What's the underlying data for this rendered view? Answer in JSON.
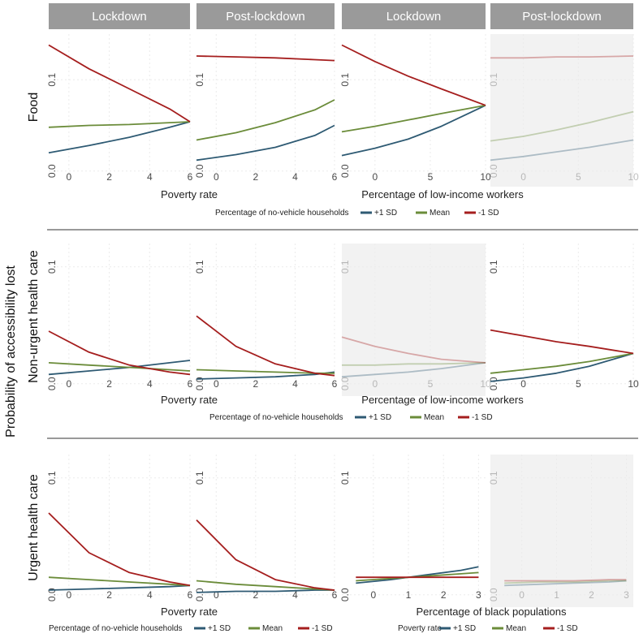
{
  "chart_data": {
    "type": "line",
    "ylabel": "Probability of accessibility lost",
    "strip_labels": [
      "Lockdown",
      "Post-lockdown",
      "Lockdown",
      "Post-lockdown"
    ],
    "colors": {
      "plus": "#2e5a73",
      "mean": "#6b8c3a",
      "minus": "#a51e1e",
      "strip": "#9a9a9a",
      "separator": "#999999",
      "faded_bg": "#f2f2f2",
      "grid": "#ebebeb"
    },
    "y_ticks": [
      {
        "value": 0,
        "label": "0.0"
      },
      {
        "value": 0.1,
        "label": "0.1"
      }
    ],
    "rows": [
      {
        "label": "Food",
        "ylim": [
          -0.01,
          0.15
        ],
        "groups": [
          {
            "xlabel": "Poverty rate",
            "legend": {
              "title": "Percentage of no-vehicle households",
              "entries": [
                "+1 SD",
                "Mean",
                "-1 SD"
              ]
            }
          },
          {
            "xlabel": "Percentage of low-income workers",
            "legend": null
          }
        ],
        "panels": [
          {
            "xlim": [
              -1,
              6
            ],
            "x_ticks": [
              0,
              2,
              4,
              6
            ],
            "faded": false,
            "series": [
              {
                "name": "+1 SD",
                "x": [
                  -1,
                  1,
                  3,
                  5,
                  6
                ],
                "y": [
                  0.02,
                  0.028,
                  0.037,
                  0.048,
                  0.054
                ]
              },
              {
                "name": "Mean",
                "x": [
                  -1,
                  1,
                  3,
                  5,
                  6
                ],
                "y": [
                  0.048,
                  0.05,
                  0.051,
                  0.053,
                  0.054
                ]
              },
              {
                "name": "-1 SD",
                "x": [
                  -1,
                  1,
                  3,
                  5,
                  6
                ],
                "y": [
                  0.138,
                  0.112,
                  0.09,
                  0.068,
                  0.054
                ]
              }
            ]
          },
          {
            "xlim": [
              -1,
              6
            ],
            "x_ticks": [
              0,
              2,
              4,
              6
            ],
            "faded": false,
            "series": [
              {
                "name": "+1 SD",
                "x": [
                  -1,
                  1,
                  3,
                  5,
                  6
                ],
                "y": [
                  0.012,
                  0.018,
                  0.026,
                  0.039,
                  0.05
                ]
              },
              {
                "name": "Mean",
                "x": [
                  -1,
                  1,
                  3,
                  5,
                  6
                ],
                "y": [
                  0.034,
                  0.042,
                  0.053,
                  0.067,
                  0.078
                ]
              },
              {
                "name": "-1 SD",
                "x": [
                  -1,
                  1,
                  3,
                  5,
                  6
                ],
                "y": [
                  0.126,
                  0.125,
                  0.124,
                  0.122,
                  0.121
                ]
              }
            ]
          },
          {
            "xlim": [
              -3,
              10
            ],
            "x_ticks": [
              0,
              5,
              10
            ],
            "faded": false,
            "series": [
              {
                "name": "+1 SD",
                "x": [
                  -3,
                  0,
                  3,
                  6,
                  10
                ],
                "y": [
                  0.017,
                  0.025,
                  0.035,
                  0.049,
                  0.072
                ]
              },
              {
                "name": "Mean",
                "x": [
                  -3,
                  0,
                  3,
                  6,
                  10
                ],
                "y": [
                  0.043,
                  0.049,
                  0.056,
                  0.063,
                  0.072
                ]
              },
              {
                "name": "-1 SD",
                "x": [
                  -3,
                  0,
                  3,
                  6,
                  10
                ],
                "y": [
                  0.138,
                  0.12,
                  0.104,
                  0.09,
                  0.072
                ]
              }
            ]
          },
          {
            "xlim": [
              -3,
              10
            ],
            "x_ticks": [
              0,
              5,
              10
            ],
            "faded": true,
            "series": [
              {
                "name": "+1 SD",
                "x": [
                  -3,
                  0,
                  3,
                  6,
                  10
                ],
                "y": [
                  0.012,
                  0.016,
                  0.021,
                  0.026,
                  0.034
                ]
              },
              {
                "name": "Mean",
                "x": [
                  -3,
                  0,
                  3,
                  6,
                  10
                ],
                "y": [
                  0.033,
                  0.038,
                  0.045,
                  0.053,
                  0.065
                ]
              },
              {
                "name": "-1 SD",
                "x": [
                  -3,
                  0,
                  3,
                  6,
                  10
                ],
                "y": [
                  0.124,
                  0.124,
                  0.125,
                  0.125,
                  0.126
                ]
              }
            ]
          }
        ]
      },
      {
        "label": "Non-urgent health care",
        "ylim": [
          -0.005,
          0.12
        ],
        "groups": [
          {
            "xlabel": "Poverty rate",
            "legend": {
              "title": "Percentage of no-vehicle households",
              "entries": [
                "+1 SD",
                "Mean",
                "-1 SD"
              ]
            }
          },
          {
            "xlabel": "Percentage of low-income workers",
            "legend": null
          }
        ],
        "panels": [
          {
            "xlim": [
              -1,
              6
            ],
            "x_ticks": [
              0,
              2,
              4,
              6
            ],
            "faded": false,
            "series": [
              {
                "name": "+1 SD",
                "x": [
                  -1,
                  1,
                  3,
                  5,
                  6
                ],
                "y": [
                  0.008,
                  0.011,
                  0.014,
                  0.018,
                  0.02
                ]
              },
              {
                "name": "Mean",
                "x": [
                  -1,
                  1,
                  3,
                  5,
                  6
                ],
                "y": [
                  0.018,
                  0.016,
                  0.014,
                  0.012,
                  0.011
                ]
              },
              {
                "name": "-1 SD",
                "x": [
                  -1,
                  1,
                  3,
                  5,
                  6
                ],
                "y": [
                  0.045,
                  0.027,
                  0.016,
                  0.01,
                  0.008
                ]
              }
            ]
          },
          {
            "xlim": [
              -1,
              6
            ],
            "x_ticks": [
              0,
              2,
              4,
              6
            ],
            "faded": false,
            "series": [
              {
                "name": "+1 SD",
                "x": [
                  -1,
                  1,
                  3,
                  5,
                  6
                ],
                "y": [
                  0.004,
                  0.005,
                  0.006,
                  0.008,
                  0.01
                ]
              },
              {
                "name": "Mean",
                "x": [
                  -1,
                  1,
                  3,
                  5,
                  6
                ],
                "y": [
                  0.012,
                  0.011,
                  0.01,
                  0.009,
                  0.009
                ]
              },
              {
                "name": "-1 SD",
                "x": [
                  -1,
                  1,
                  3,
                  5,
                  6
                ],
                "y": [
                  0.058,
                  0.032,
                  0.017,
                  0.009,
                  0.007
                ]
              }
            ]
          },
          {
            "xlim": [
              -3,
              10
            ],
            "x_ticks": [
              0,
              5,
              10
            ],
            "faded": true,
            "series": [
              {
                "name": "+1 SD",
                "x": [
                  -3,
                  0,
                  3,
                  6,
                  10
                ],
                "y": [
                  0.006,
                  0.008,
                  0.01,
                  0.013,
                  0.018
                ]
              },
              {
                "name": "Mean",
                "x": [
                  -3,
                  0,
                  3,
                  6,
                  10
                ],
                "y": [
                  0.016,
                  0.016,
                  0.017,
                  0.017,
                  0.018
                ]
              },
              {
                "name": "-1 SD",
                "x": [
                  -3,
                  0,
                  3,
                  6,
                  10
                ],
                "y": [
                  0.04,
                  0.032,
                  0.026,
                  0.021,
                  0.018
                ]
              }
            ]
          },
          {
            "xlim": [
              -3,
              10
            ],
            "x_ticks": [
              0,
              5,
              10
            ],
            "faded": false,
            "series": [
              {
                "name": "+1 SD",
                "x": [
                  -3,
                  0,
                  3,
                  6,
                  10
                ],
                "y": [
                  0.002,
                  0.005,
                  0.009,
                  0.015,
                  0.026
                ]
              },
              {
                "name": "Mean",
                "x": [
                  -3,
                  0,
                  3,
                  6,
                  10
                ],
                "y": [
                  0.009,
                  0.012,
                  0.015,
                  0.019,
                  0.026
                ]
              },
              {
                "name": "-1 SD",
                "x": [
                  -3,
                  0,
                  3,
                  6,
                  10
                ],
                "y": [
                  0.046,
                  0.041,
                  0.036,
                  0.032,
                  0.026
                ]
              }
            ]
          }
        ]
      },
      {
        "label": "Urgent health care",
        "ylim": [
          -0.005,
          0.12
        ],
        "groups": [
          {
            "xlabel": "Poverty rate",
            "legend": {
              "title": "Percentage of no-vehicle households",
              "entries": [
                "+1 SD",
                "Mean",
                "-1 SD"
              ]
            }
          },
          {
            "xlabel": "Percentage of black populations",
            "legend": {
              "title": "Poverty rate",
              "entries": [
                "+1 SD",
                "Mean",
                "-1 SD"
              ]
            }
          }
        ],
        "panels": [
          {
            "xlim": [
              -1,
              6
            ],
            "x_ticks": [
              0,
              2,
              4,
              6
            ],
            "faded": false,
            "series": [
              {
                "name": "+1 SD",
                "x": [
                  -1,
                  1,
                  3,
                  5,
                  6
                ],
                "y": [
                  0.004,
                  0.005,
                  0.006,
                  0.007,
                  0.008
                ]
              },
              {
                "name": "Mean",
                "x": [
                  -1,
                  1,
                  3,
                  5,
                  6
                ],
                "y": [
                  0.015,
                  0.013,
                  0.011,
                  0.009,
                  0.008
                ]
              },
              {
                "name": "-1 SD",
                "x": [
                  -1,
                  1,
                  3,
                  5,
                  6
                ],
                "y": [
                  0.07,
                  0.036,
                  0.019,
                  0.011,
                  0.008
                ]
              }
            ]
          },
          {
            "xlim": [
              -1,
              6
            ],
            "x_ticks": [
              0,
              2,
              4,
              6
            ],
            "faded": false,
            "series": [
              {
                "name": "+1 SD",
                "x": [
                  -1,
                  1,
                  3,
                  5,
                  6
                ],
                "y": [
                  0.002,
                  0.003,
                  0.003,
                  0.004,
                  0.004
                ]
              },
              {
                "name": "Mean",
                "x": [
                  -1,
                  1,
                  3,
                  5,
                  6
                ],
                "y": [
                  0.012,
                  0.009,
                  0.007,
                  0.005,
                  0.004
                ]
              },
              {
                "name": "-1 SD",
                "x": [
                  -1,
                  1,
                  3,
                  5,
                  6
                ],
                "y": [
                  0.064,
                  0.03,
                  0.013,
                  0.006,
                  0.004
                ]
              }
            ]
          },
          {
            "xlim": [
              -0.9,
              3.2
            ],
            "x_ticks": [
              0,
              1,
              2,
              3
            ],
            "faded": false,
            "series": [
              {
                "name": "+1 SD",
                "x": [
                  -0.5,
                  0.5,
                  1.5,
                  2.5,
                  3.0
                ],
                "y": [
                  0.01,
                  0.013,
                  0.017,
                  0.021,
                  0.024
                ]
              },
              {
                "name": "Mean",
                "x": [
                  -0.5,
                  0.5,
                  1.5,
                  2.5,
                  3.0
                ],
                "y": [
                  0.012,
                  0.014,
                  0.016,
                  0.018,
                  0.019
                ]
              },
              {
                "name": "-1 SD",
                "x": [
                  -0.5,
                  0.5,
                  1.5,
                  2.5,
                  3.0
                ],
                "y": [
                  0.015,
                  0.015,
                  0.015,
                  0.015,
                  0.015
                ]
              }
            ]
          },
          {
            "xlim": [
              -0.9,
              3.2
            ],
            "x_ticks": [
              0,
              1,
              2,
              3
            ],
            "faded": true,
            "series": [
              {
                "name": "+1 SD",
                "x": [
                  -0.5,
                  0.5,
                  1.5,
                  2.5,
                  3.0
                ],
                "y": [
                  0.008,
                  0.009,
                  0.01,
                  0.011,
                  0.012
                ]
              },
              {
                "name": "Mean",
                "x": [
                  -0.5,
                  0.5,
                  1.5,
                  2.5,
                  3.0
                ],
                "y": [
                  0.01,
                  0.011,
                  0.011,
                  0.012,
                  0.012
                ]
              },
              {
                "name": "-1 SD",
                "x": [
                  -0.5,
                  0.5,
                  1.5,
                  2.5,
                  3.0
                ],
                "y": [
                  0.012,
                  0.012,
                  0.012,
                  0.013,
                  0.013
                ]
              }
            ]
          }
        ]
      }
    ]
  }
}
